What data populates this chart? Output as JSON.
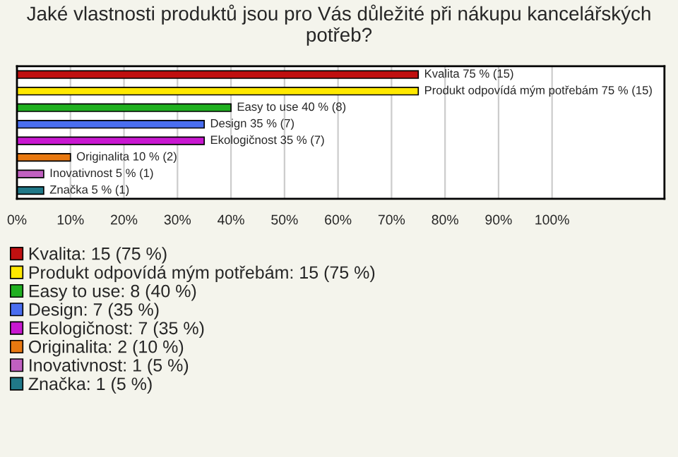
{
  "chart_data": {
    "type": "bar",
    "orientation": "horizontal",
    "title": "Jaké vlastnosti produktů jsou pro Vás důležité při nákupu kancelářských potřeb?",
    "categories": [
      null,
      null,
      null,
      null,
      null,
      null,
      null,
      null
    ],
    "series": [
      {
        "name": "Kvalita: 15 (75 %)",
        "color": "#c01010",
        "values": [
          75,
          null,
          null,
          null,
          null,
          null,
          null,
          null
        ],
        "value_labels": [
          "Kvalita 75 % (15)",
          null,
          null,
          null,
          null,
          null,
          null,
          null
        ]
      },
      {
        "name": "Produkt odpovídá mým potřebám: 15 (75 %)",
        "color": "#ffe800",
        "values": [
          null,
          75,
          null,
          null,
          null,
          null,
          null,
          null
        ],
        "value_labels": [
          null,
          "Produkt odpovídá mým potřebám 75 % (15)",
          null,
          null,
          null,
          null,
          null,
          null
        ]
      },
      {
        "name": "Easy to use: 8 (40 %)",
        "color": "#20b020",
        "values": [
          null,
          null,
          40,
          null,
          null,
          null,
          null,
          null
        ],
        "value_labels": [
          null,
          null,
          "Easy to use 40 % (8)",
          null,
          null,
          null,
          null,
          null
        ]
      },
      {
        "name": "Design: 7 (35 %)",
        "color": "#4a6ef0",
        "values": [
          null,
          null,
          null,
          35,
          null,
          null,
          null,
          null
        ],
        "value_labels": [
          null,
          null,
          null,
          "Design 35 % (7)",
          null,
          null,
          null,
          null
        ]
      },
      {
        "name": "Ekologičnost: 7 (35 %)",
        "color": "#c818d0",
        "values": [
          null,
          null,
          null,
          null,
          35,
          null,
          null,
          null
        ],
        "value_labels": [
          null,
          null,
          null,
          null,
          "Ekologičnost 35 % (7)",
          null,
          null,
          null
        ]
      },
      {
        "name": "Originalita: 2 (10 %)",
        "color": "#e87810",
        "values": [
          null,
          null,
          null,
          null,
          null,
          10,
          null,
          null
        ],
        "value_labels": [
          null,
          null,
          null,
          null,
          null,
          "Originalita 10 % (2)",
          null,
          null
        ]
      },
      {
        "name": "Inovativnost: 1 (5 %)",
        "color": "#c060c0",
        "values": [
          null,
          null,
          null,
          null,
          null,
          null,
          5,
          null
        ],
        "value_labels": [
          null,
          null,
          null,
          null,
          null,
          null,
          "Inovativnost 5 % (1)",
          null
        ]
      },
      {
        "name": "Značka: 1 (5 %)",
        "color": "#207888",
        "values": [
          null,
          null,
          null,
          null,
          null,
          null,
          null,
          5
        ],
        "value_labels": [
          null,
          null,
          null,
          null,
          null,
          null,
          null,
          "Značka 5 % (1)"
        ]
      }
    ],
    "xlim": [
      0,
      121
    ],
    "xticks": [
      {
        "value": 0,
        "label": "0%"
      },
      {
        "value": 10,
        "label": "10%"
      },
      {
        "value": 20,
        "label": "20%"
      },
      {
        "value": 30,
        "label": "30%"
      },
      {
        "value": 40,
        "label": "40%"
      },
      {
        "value": 50,
        "label": "50%"
      },
      {
        "value": 60,
        "label": "60%"
      },
      {
        "value": 70,
        "label": "70%"
      },
      {
        "value": 80,
        "label": "80%"
      },
      {
        "value": 90,
        "label": "90%"
      },
      {
        "value": 100,
        "label": "100%"
      }
    ],
    "grid": "x",
    "legend": "bottom"
  }
}
